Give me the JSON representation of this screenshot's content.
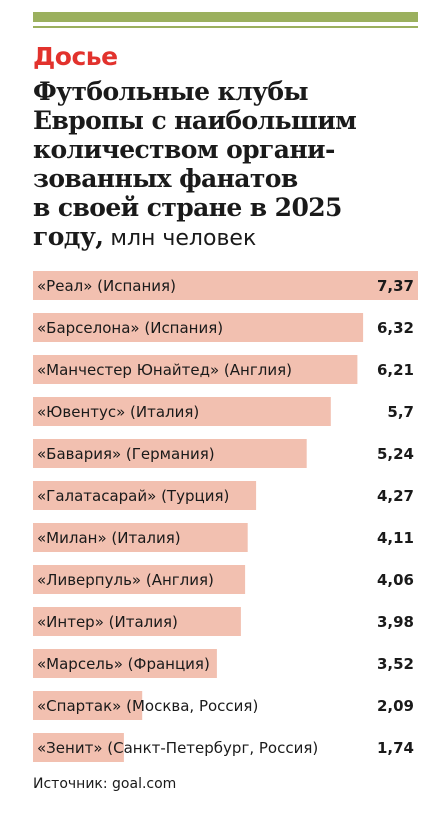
{
  "header": {
    "kicker": "Досье",
    "title_lines": [
      "Футбольные клубы",
      "Европы с наибольшим",
      "количеством органи-",
      "зованных фанатов",
      "в своей стране в 2025",
      "году,"
    ],
    "unit": " млн человек"
  },
  "source": "Источник: goal.com",
  "colors": {
    "bar": "#f2c0b0",
    "accent_line": "#9bb05e",
    "kicker": "#e2322d"
  },
  "chart_data": {
    "type": "bar",
    "orientation": "horizontal",
    "categories": [
      "«Реал» (Испания)",
      "«Барселона» (Испания)",
      "«Манчестер Юнайтед» (Англия)",
      "«Ювентус» (Италия)",
      "«Бавария» (Германия)",
      "«Галатасарай» (Турция)",
      "«Милан» (Италия)",
      "«Ливерпуль» (Англия)",
      "«Интер» (Италия)",
      "«Марсель» (Франция)",
      "«Спартак» (Москва, Россия)",
      "«Зенит» (Санкт-Петербург, Россия)"
    ],
    "values": [
      7.37,
      6.32,
      6.21,
      5.7,
      5.24,
      4.27,
      4.11,
      4.06,
      3.98,
      3.52,
      2.09,
      1.74
    ],
    "value_labels": [
      "7,37",
      "6,32",
      "6,21",
      "5,7",
      "5,24",
      "4,27",
      "4,11",
      "4,06",
      "3,98",
      "3,52",
      "2,09",
      "1,74"
    ],
    "xlim": [
      0,
      7.37
    ],
    "grid": false,
    "legend": "none"
  }
}
